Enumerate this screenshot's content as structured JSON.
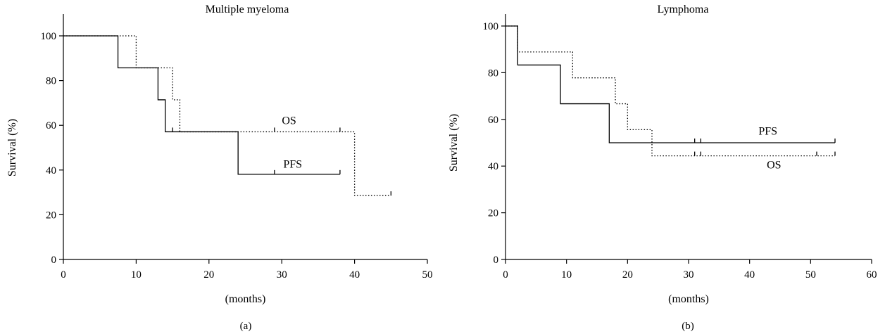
{
  "chart_data": [
    {
      "type": "line",
      "subtype": "kaplan-meier step",
      "title": "Multiple myeloma",
      "panel_label": "(a)",
      "xlabel": "(months)",
      "ylabel": "Survival (%)",
      "xlim": [
        0,
        50
      ],
      "ylim": [
        0,
        100
      ],
      "xticks": [
        0,
        10,
        20,
        30,
        40,
        50
      ],
      "yticks": [
        0,
        20,
        40,
        60,
        80,
        100
      ],
      "grid": false,
      "legend": "inline labels",
      "series": [
        {
          "name": "OS",
          "style": "dotted",
          "x": [
            0,
            10,
            15,
            16,
            40,
            45
          ],
          "y": [
            100,
            85.7,
            71.4,
            57.1,
            28.6,
            28.6
          ],
          "censored": [
            {
              "x": 29,
              "y": 57.1
            },
            {
              "x": 38,
              "y": 57.1
            },
            {
              "x": 45,
              "y": 28.6
            }
          ]
        },
        {
          "name": "PFS",
          "style": "solid",
          "x": [
            0,
            7.5,
            13,
            14,
            24,
            38
          ],
          "y": [
            100,
            85.7,
            71.4,
            57.1,
            38.1,
            38.1
          ],
          "censored": [
            {
              "x": 15,
              "y": 57.1
            },
            {
              "x": 29,
              "y": 38.1
            },
            {
              "x": 38,
              "y": 38.1
            }
          ]
        }
      ],
      "annotations": [
        {
          "text": "OS",
          "x": 31,
          "y": 60.5
        },
        {
          "text": "PFS",
          "x": 31.5,
          "y": 41
        }
      ]
    },
    {
      "type": "line",
      "subtype": "kaplan-meier step",
      "title": "Lymphoma",
      "panel_label": "(b)",
      "xlabel": "(months)",
      "ylabel": "Survival (%)",
      "xlim": [
        0,
        60
      ],
      "ylim": [
        0,
        100
      ],
      "xticks": [
        0,
        10,
        20,
        30,
        40,
        50,
        60
      ],
      "yticks": [
        0,
        20,
        40,
        60,
        80,
        100
      ],
      "grid": false,
      "legend": "inline labels",
      "series": [
        {
          "name": "PFS",
          "style": "solid",
          "x": [
            0,
            2,
            9,
            17,
            54
          ],
          "y": [
            100,
            83.3,
            66.7,
            50,
            50
          ],
          "censored": [
            {
              "x": 31,
              "y": 50
            },
            {
              "x": 32,
              "y": 50
            },
            {
              "x": 54,
              "y": 50
            }
          ]
        },
        {
          "name": "OS",
          "style": "dotted",
          "x": [
            0,
            2,
            11,
            18,
            20,
            24,
            54
          ],
          "y": [
            100,
            88.9,
            77.8,
            66.7,
            55.6,
            44.4,
            44.4
          ],
          "censored": [
            {
              "x": 31,
              "y": 44.4
            },
            {
              "x": 32,
              "y": 44.4
            },
            {
              "x": 51,
              "y": 44.4
            },
            {
              "x": 54,
              "y": 44.4
            }
          ]
        }
      ],
      "annotations": [
        {
          "text": "PFS",
          "x": 43,
          "y": 53.5
        },
        {
          "text": "OS",
          "x": 44,
          "y": 39
        }
      ]
    }
  ]
}
